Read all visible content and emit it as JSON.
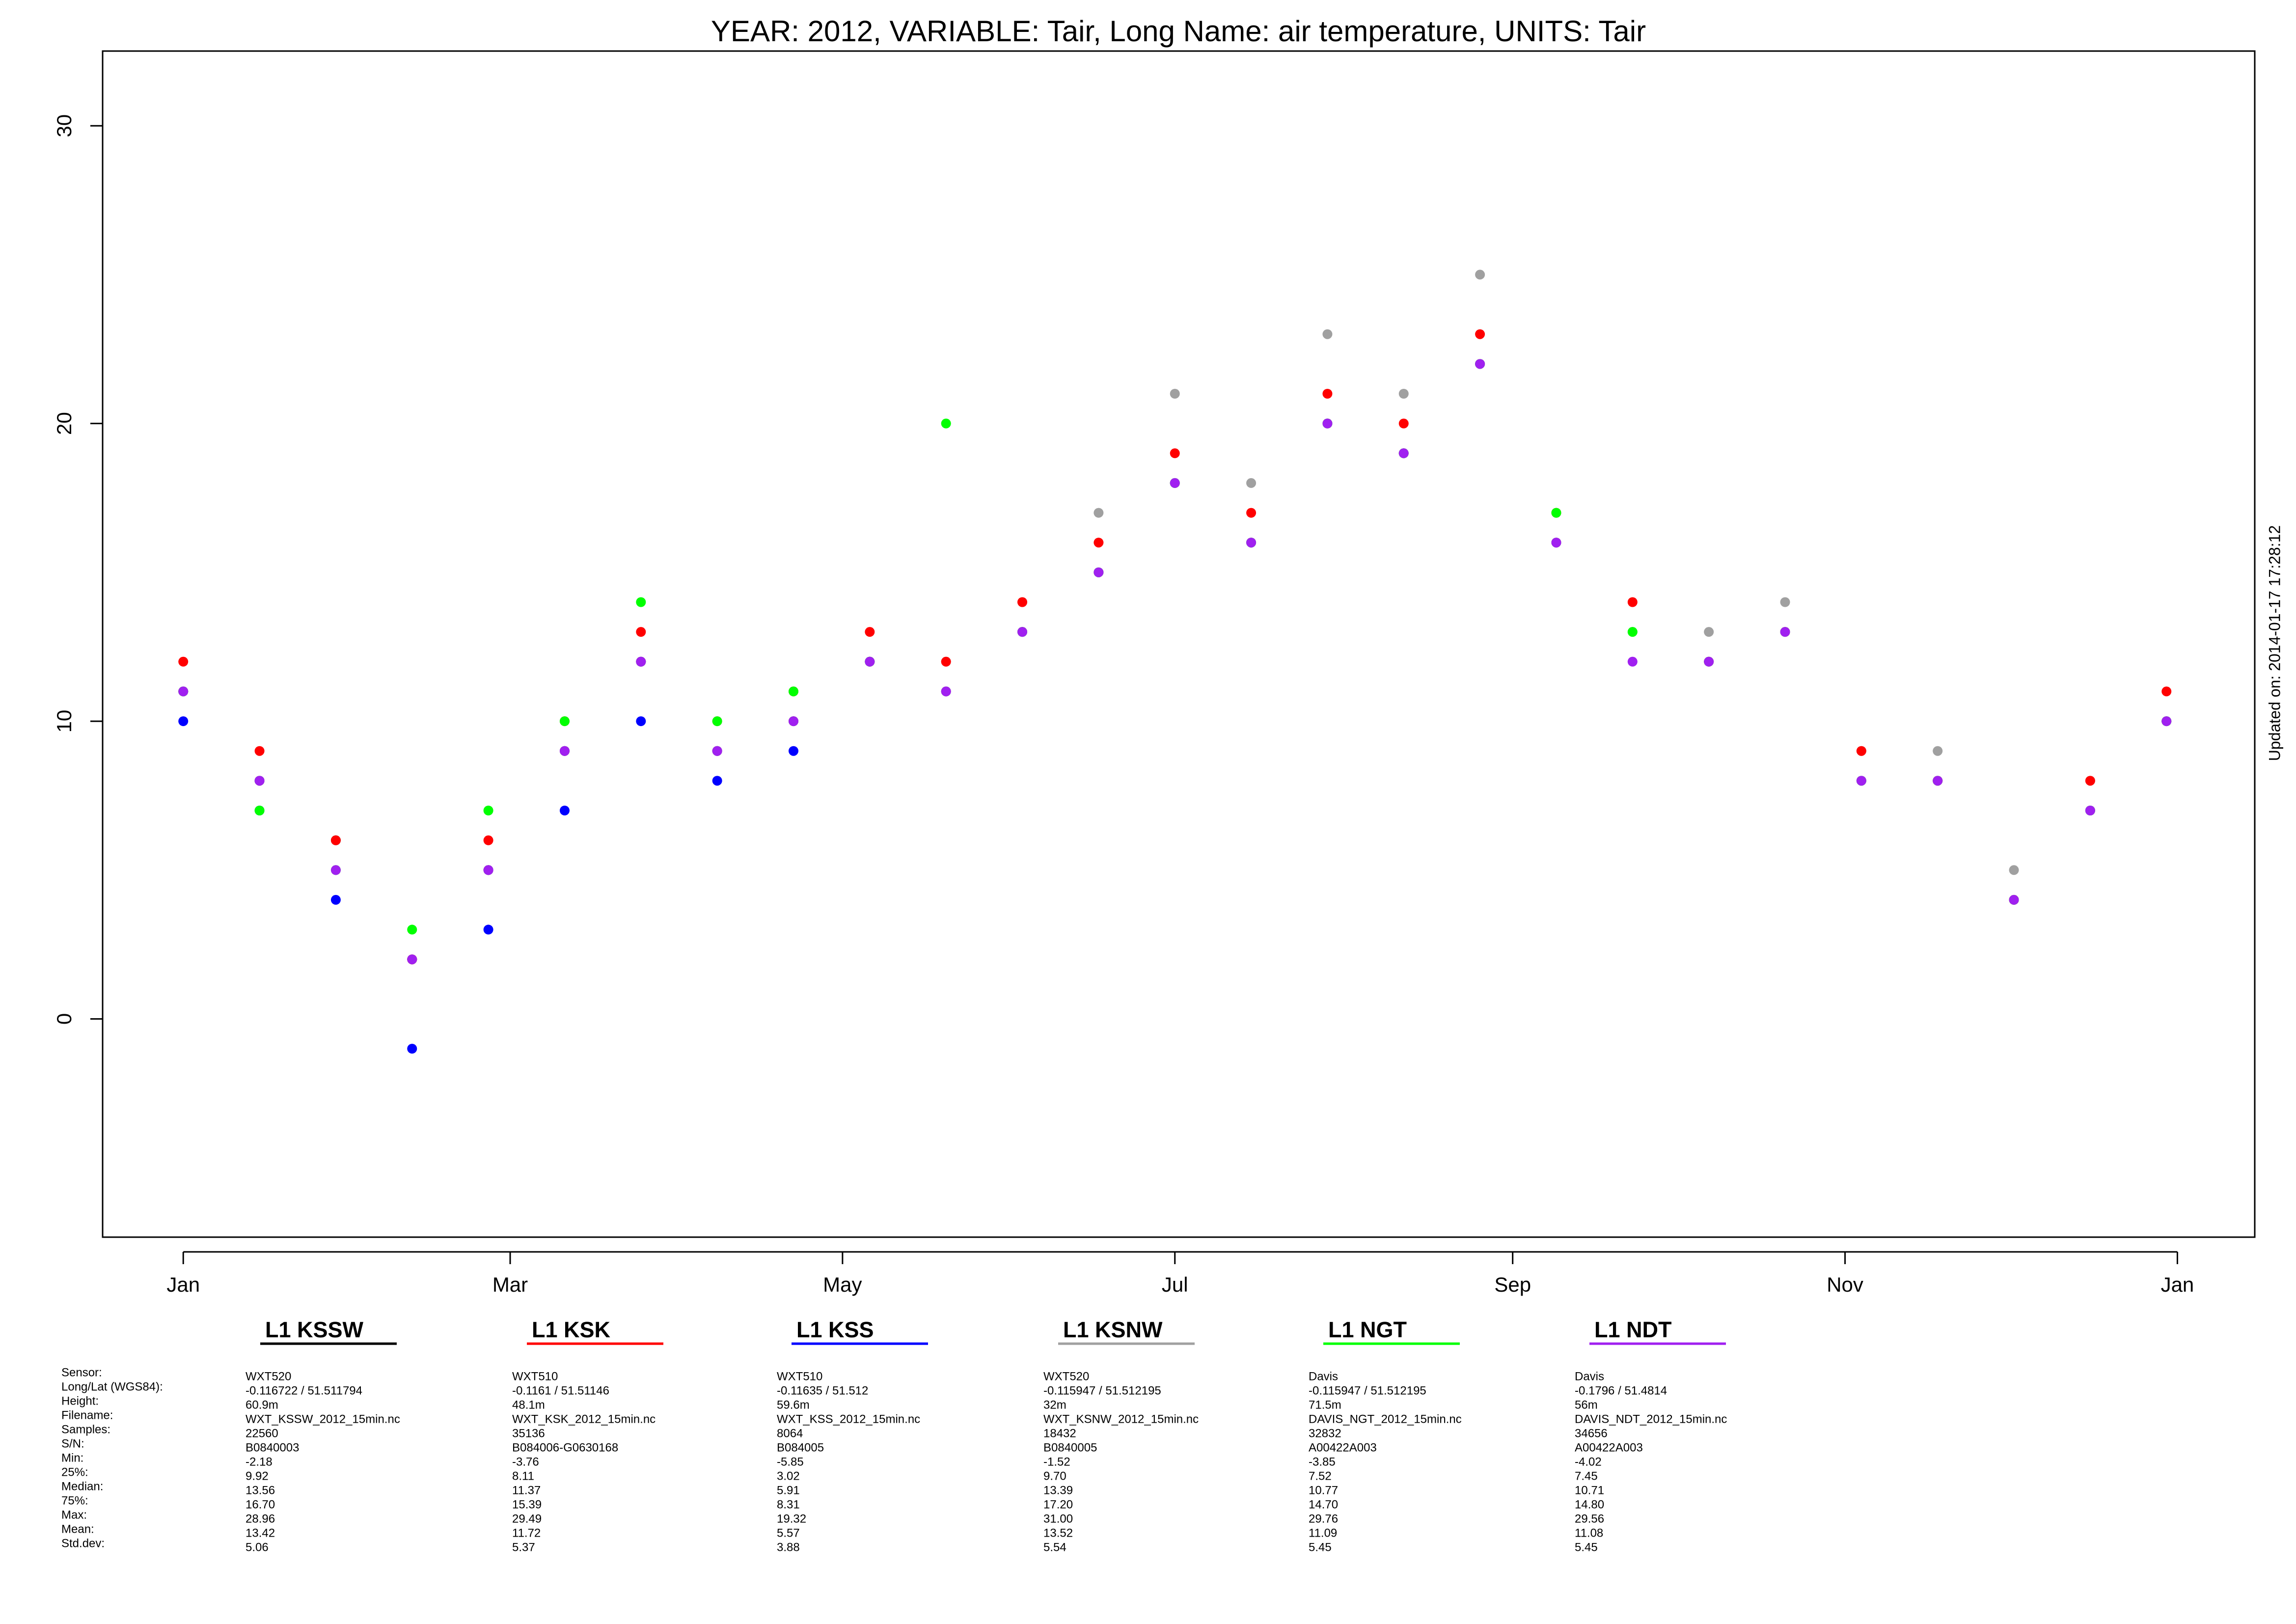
{
  "chart_data": {
    "type": "scatter",
    "title": "YEAR: 2012, VARIABLE: Tair, Long Name: air  temperature, UNITS: Tair",
    "annotation": "Updated on: 2014-01-17 17:28:12",
    "x": [
      1,
      15,
      29,
      43,
      57,
      71,
      85,
      99,
      113,
      127,
      141,
      155,
      169,
      183,
      197,
      211,
      225,
      239,
      253,
      267,
      281,
      295,
      309,
      323,
      337,
      351,
      365
    ],
    "xlim": [
      -13.8,
      381.2
    ],
    "xticks": [
      {
        "value": 1,
        "label": "Jan"
      },
      {
        "value": 61,
        "label": "Mar"
      },
      {
        "value": 122,
        "label": "May"
      },
      {
        "value": 183,
        "label": "Jul"
      },
      {
        "value": 245,
        "label": "Sep"
      },
      {
        "value": 306,
        "label": "Nov"
      },
      {
        "value": 367,
        "label": "Jan"
      }
    ],
    "ylim": [
      -7.33,
      32.51
    ],
    "yticks": [
      0,
      10,
      20,
      30
    ],
    "info_labels": [
      "Sensor:",
      "Long/Lat (WGS84):",
      "Height:",
      "Filename:",
      "Samples:",
      "S/N:",
      "Min:",
      "25%:",
      "Median:",
      "75%:",
      "Max:",
      "Mean:",
      "Std.dev:"
    ],
    "series": [
      {
        "name": "L1 KSSW",
        "color": "#000000",
        "values": [
          11,
          8,
          6,
          2,
          5,
          9,
          12,
          9,
          10,
          12,
          11,
          13,
          15,
          18,
          16,
          20,
          19,
          22,
          16,
          null,
          null,
          null,
          8,
          8,
          4,
          7,
          10
        ],
        "info": [
          "WXT520",
          "-0.116722 / 51.511794",
          "60.9m",
          "WXT_KSSW_2012_15min.nc",
          "22560",
          "B0840003",
          "-2.18",
          "9.92",
          "13.56",
          "16.70",
          "28.96",
          "13.42",
          "5.06"
        ]
      },
      {
        "name": "L1 KSK",
        "color": "#ff0000",
        "values": [
          12,
          9,
          6,
          2,
          6,
          10,
          13,
          10,
          11,
          13,
          12,
          14,
          16,
          19,
          17,
          21,
          20,
          23,
          17,
          14,
          12,
          13,
          9,
          8,
          4,
          8,
          11
        ],
        "info": [
          "WXT510",
          "-0.1161 / 51.51146",
          "48.1m",
          "WXT_KSK_2012_15min.nc",
          "35136",
          "B084006-G0630168",
          "-3.76",
          "8.11",
          "11.37",
          "15.39",
          "29.49",
          "11.72",
          "5.37"
        ]
      },
      {
        "name": "L1 KSS",
        "color": "#0000ff",
        "values": [
          10,
          7,
          4,
          -1,
          3,
          7,
          10,
          8,
          9,
          null,
          null,
          null,
          null,
          null,
          null,
          null,
          null,
          null,
          null,
          null,
          null,
          null,
          null,
          null,
          null,
          null,
          null
        ],
        "info": [
          "WXT510",
          "-0.11635 / 51.512",
          "59.6m",
          "WXT_KSS_2012_15min.nc",
          "8064",
          "B084005",
          "-5.85",
          "3.02",
          "5.91",
          "8.31",
          "19.32",
          "5.57",
          "3.88"
        ]
      },
      {
        "name": "L1 KSNW",
        "color": "#a0a0a0",
        "values": [
          11,
          8,
          5,
          2,
          5,
          9,
          12,
          9,
          10,
          12,
          12,
          14,
          17,
          21,
          18,
          23,
          21,
          25,
          17,
          13,
          13,
          14,
          9,
          9,
          5,
          8,
          10
        ],
        "info": [
          "WXT520",
          "-0.115947 / 51.512195",
          "32m",
          "WXT_KSNW_2012_15min.nc",
          "18432",
          "B0840005",
          "-1.52",
          "9.70",
          "13.39",
          "17.20",
          "31.00",
          "13.52",
          "5.54"
        ]
      },
      {
        "name": "L1 NGT",
        "color": "#00ff00",
        "values": [
          11,
          7,
          5,
          3,
          7,
          10,
          14,
          10,
          11,
          12,
          20,
          13,
          15,
          18,
          16,
          20,
          19,
          22,
          17,
          13,
          12,
          13,
          8,
          8,
          4,
          7,
          10
        ],
        "info": [
          "Davis",
          "-0.115947 / 51.512195",
          "71.5m",
          "DAVIS_NGT_2012_15min.nc",
          "32832",
          "A00422A003",
          "-3.85",
          "7.52",
          "10.77",
          "14.70",
          "29.76",
          "11.09",
          "5.45"
        ]
      },
      {
        "name": "L1 NDT",
        "color": "#a020f0",
        "values": [
          11,
          8,
          5,
          2,
          5,
          9,
          12,
          9,
          10,
          12,
          11,
          13,
          15,
          18,
          16,
          20,
          19,
          22,
          16,
          12,
          12,
          13,
          8,
          8,
          4,
          7,
          10
        ],
        "info": [
          "Davis",
          "-0.1796 / 51.4814",
          "56m",
          "DAVIS_NDT_2012_15min.nc",
          "34656",
          "A00422A003",
          "-4.02",
          "7.45",
          "10.71",
          "14.80",
          "29.56",
          "11.08",
          "5.45"
        ]
      }
    ]
  }
}
